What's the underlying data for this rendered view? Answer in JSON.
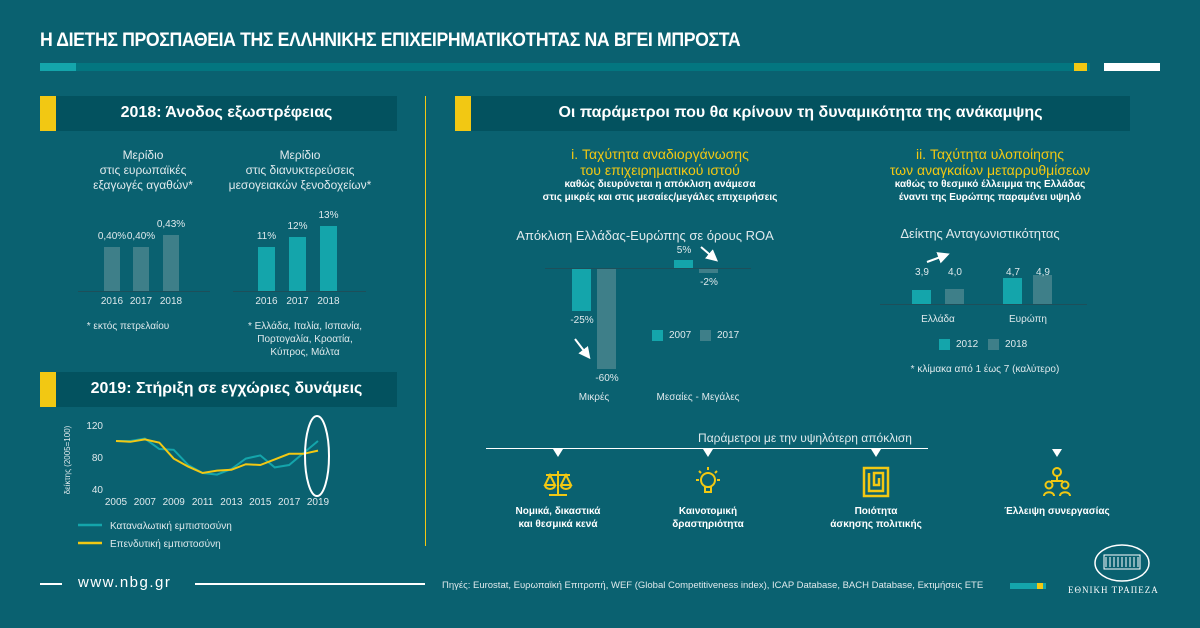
{
  "title": "Η ΔΙΕΤΗΣ ΠΡΟΣΠΑΘΕΙΑ ΤΗΣ ΕΛΛΗΝΙΚΗΣ ΕΠΙΧΕΙΡΗΜΑΤΙΚΟΤΗΤΑΣ ΝΑ ΒΓΕΙ ΜΠΡΟΣΤΑ",
  "colors": {
    "bg": "#0a6170",
    "header": "#03525f",
    "accent": "#f2c813",
    "teal": "#14a5ab",
    "grey": "#3e7f89"
  },
  "left": {
    "section1_title": "2018: Άνοδος εξωστρέφειας",
    "section2_title": "2019: Στήριξη σε εγχώριες δυνάμεις"
  },
  "right": {
    "section_title": "Οι παράμετροι που θα κρίνουν τη δυναμικότητα της ανάκαμψης",
    "col1": {
      "title1": "i. Ταχύτητα αναδιοργάνωσης",
      "title2": "του επιχειρηματικού ιστού",
      "sub1": "καθώς διευρύνεται η απόκλιση ανάμεσα",
      "sub2": "στις μικρές και στις μεσαίες/μεγάλες επιχειρήσεις"
    },
    "col2": {
      "title1": "ii. Ταχύτητα υλοποίησης",
      "title2": "των αναγκαίων μεταρρυθμίσεων",
      "sub1": "καθώς το θεσμικό έλλειμμα της Ελλάδας",
      "sub2": "έναντι της Ευρώπης παραμένει υψηλό"
    },
    "params_title": "Παράμετροι με την υψηλότερη απόκλιση",
    "params": [
      {
        "icon": "scales-icon",
        "line1": "Νομικά, δικαστικά",
        "line2": "και θεσμικά κενά"
      },
      {
        "icon": "lightbulb-icon",
        "line1": "Καινοτομική",
        "line2": "δραστηριότητα"
      },
      {
        "icon": "maze-icon",
        "line1": "Ποιότητα",
        "line2": "άσκησης πολιτικής"
      },
      {
        "icon": "people-network-icon",
        "line1": "Έλλειψη συνεργασίας",
        "line2": ""
      }
    ]
  },
  "footer": {
    "url": "www.nbg.gr",
    "sources": "Πηγές: Eurostat, Ευρωπαϊκή Επιτροπή, WEF (Global Competitiveness index), ICAP Database, BACH Database, Εκτιμήσεις ΕΤΕ",
    "logo_text": "ΕΘΝΙΚΗ ΤΡΑΠΕΖΑ"
  },
  "chart_data": [
    {
      "type": "bar",
      "title": [
        "Μερίδιο",
        "στις ευρωπαϊκές",
        "εξαγωγές αγαθών*"
      ],
      "categories": [
        "2016",
        "2017",
        "2018"
      ],
      "values": [
        0.4,
        0.4,
        0.43
      ],
      "labels": [
        "0,40%",
        "0,40%",
        "0,43%"
      ],
      "note": "* εκτός πετρελαίου"
    },
    {
      "type": "bar",
      "title": [
        "Μερίδιο",
        "στις διανυκτερεύσεις",
        "μεσογειακών ξενοδοχείων*"
      ],
      "categories": [
        "2016",
        "2017",
        "2018"
      ],
      "values": [
        11,
        12,
        13
      ],
      "labels": [
        "11%",
        "12%",
        "13%"
      ],
      "note": [
        "* Ελλάδα, Ιταλία, Ισπανία,",
        "Πορτογαλία, Κροατία,",
        "Κύπρος, Μάλτα"
      ]
    },
    {
      "type": "line",
      "ylabel": "δείκτης (2005=100)",
      "ylim": [
        40,
        120
      ],
      "yticks": [
        "120",
        "80",
        "40"
      ],
      "xticks": [
        "2005",
        "2007",
        "2009",
        "2011",
        "2013",
        "2015",
        "2017",
        "2019"
      ],
      "x": [
        2005,
        2006,
        2007,
        2008,
        2009,
        2010,
        2011,
        2012,
        2013,
        2014,
        2015,
        2016,
        2017,
        2018,
        2019
      ],
      "series": [
        {
          "name": "Καταναλωτική εμπιστοσύνη",
          "color": "#14a5ab",
          "values": [
            100,
            100,
            103,
            90,
            89,
            70,
            60,
            58,
            65,
            78,
            82,
            67,
            70,
            85,
            100
          ]
        },
        {
          "name": "Επενδυτική εμπιστοσύνη",
          "color": "#f2c813",
          "values": [
            100,
            99,
            102,
            98,
            78,
            68,
            60,
            63,
            64,
            71,
            70,
            77,
            84,
            84,
            88
          ]
        }
      ]
    },
    {
      "type": "bar",
      "title": "Απόκλιση Ελλάδας-Ευρώπης σε όρους ROA",
      "categories": [
        "Μικρές",
        "Μεσαίες - Μεγάλες"
      ],
      "series": [
        {
          "name": "2007",
          "values": [
            -25,
            5
          ],
          "labels": [
            "-25%",
            "5%"
          ]
        },
        {
          "name": "2017",
          "values": [
            -60,
            -2
          ],
          "labels": [
            "-60%",
            "-2%"
          ]
        }
      ]
    },
    {
      "type": "bar",
      "title": "Δείκτης Ανταγωνιστικότητας",
      "categories": [
        "Ελλάδα",
        "Ευρώπη"
      ],
      "series": [
        {
          "name": "2012",
          "values": [
            3.9,
            4.7
          ],
          "labels": [
            "3,9",
            "4,7"
          ]
        },
        {
          "name": "2018",
          "values": [
            4.0,
            4.9
          ],
          "labels": [
            "4,0",
            "4,9"
          ]
        }
      ],
      "note": "* κλίμακα από 1 έως 7 (καλύτερο)"
    }
  ]
}
